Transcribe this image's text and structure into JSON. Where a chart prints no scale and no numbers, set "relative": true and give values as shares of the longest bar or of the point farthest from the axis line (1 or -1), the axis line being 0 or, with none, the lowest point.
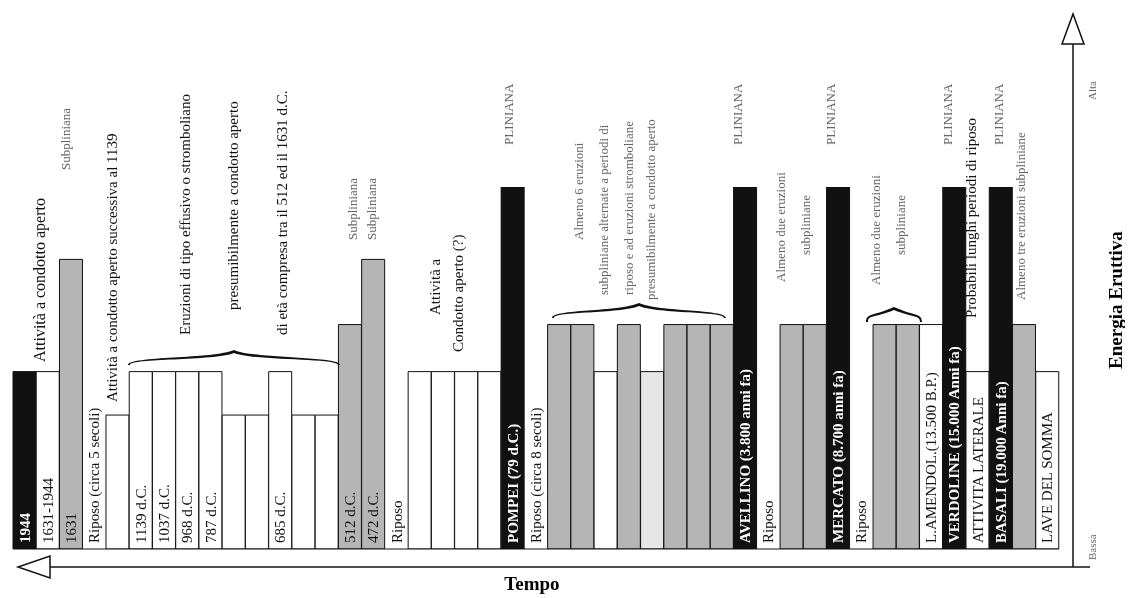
{
  "chart_data": {
    "type": "bar",
    "relative": true,
    "xlabel": "Tempo",
    "ylabel": "Energia Eruttiva",
    "categories": [
      "1944",
      "1631-1944",
      "1631",
      "Riposo (circa 5 secoli)",
      null,
      "1139 d.C.",
      "1037 d.C.",
      "968 d.C.",
      "787 d.C.",
      null,
      null,
      "685 d.C.",
      null,
      null,
      "512 d.C.",
      "472 d.C.",
      "Riposo",
      null,
      null,
      null,
      null,
      "POMPEI (79 d.C.)",
      "Riposo (circa 8 secoli)",
      null,
      null,
      null,
      null,
      null,
      null,
      null,
      null,
      "AVELLINO (3.800 anni fa)",
      "Riposo",
      null,
      null,
      "MERCATO (8.700 anni fa)",
      "Riposo",
      null,
      null,
      "L.AMENDOL.(13.500 B.P.)",
      "VERDOLINE (15.000 Anni fa)",
      "ATTIVITA LATERALE",
      "BASALI (19.000 Anni fa)",
      null,
      "LAVE DEL SOMMA"
    ],
    "values": [
      0.49,
      0.49,
      0.8,
      null,
      0.37,
      0.49,
      0.49,
      0.49,
      0.49,
      0.37,
      0.37,
      0.49,
      0.37,
      0.37,
      0.62,
      0.8,
      null,
      0.49,
      0.49,
      0.49,
      0.49,
      1,
      null,
      0.62,
      0.62,
      0.49,
      0.62,
      0.49,
      0.62,
      0.62,
      0.62,
      1,
      null,
      0.62,
      0.62,
      1,
      null,
      0.62,
      0.62,
      0.62,
      1,
      0.49,
      1,
      0.62,
      0.49
    ],
    "colors": [
      "#111111",
      "#ffffff",
      "#b5b5b5",
      null,
      "#ffffff",
      "#ffffff",
      "#ffffff",
      "#ffffff",
      "#ffffff",
      "#ffffff",
      "#ffffff",
      "#ffffff",
      "#ffffff",
      "#ffffff",
      "#b5b5b5",
      "#b5b5b5",
      null,
      "#ffffff",
      "#ffffff",
      "#ffffff",
      "#ffffff",
      "#111111",
      null,
      "#b5b5b5",
      "#b5b5b5",
      "#ffffff",
      "#b5b5b5",
      "#e6e6e6",
      "#b5b5b5",
      "#b5b5b5",
      "#b5b5b5",
      "#111111",
      null,
      "#b5b5b5",
      "#b5b5b5",
      "#111111",
      null,
      "#b5b5b5",
      "#b5b5b5",
      "#ffffff",
      "#111111",
      "#ffffff",
      "#111111",
      "#b5b5b5",
      "#ffffff"
    ],
    "annotations": [
      "Attività a condotto aperto",
      "Subpliniana",
      "Attività a condotto aperto successiva al 1139",
      "Eruzioni di tipo effusivo o stromboliano",
      "presumibilmente a condotto aperto",
      "di età compresa tra il 512 ed il 1631 d.C.",
      "Subpliniana",
      "Subpliniana",
      "Attività a",
      "Condotto aperto (?)",
      "PLINIANA",
      "Almeno 6 eruzioni",
      "subpliniane alternate a periodi di",
      "riposo e ad eruzioni stromboliane",
      "presumibilmente a condotto aperto",
      "PLINIANA",
      "Almeno due eruzioni",
      "subpliniane",
      "PLINIANA",
      "Almeno due eruzioni",
      "subpliniane",
      "PLINIANA",
      "Probabili lunghi periodi di riposo",
      "PLINIANA",
      "Almeno tre eruzioni subpliniane",
      "Alta",
      "Bassa"
    ]
  }
}
